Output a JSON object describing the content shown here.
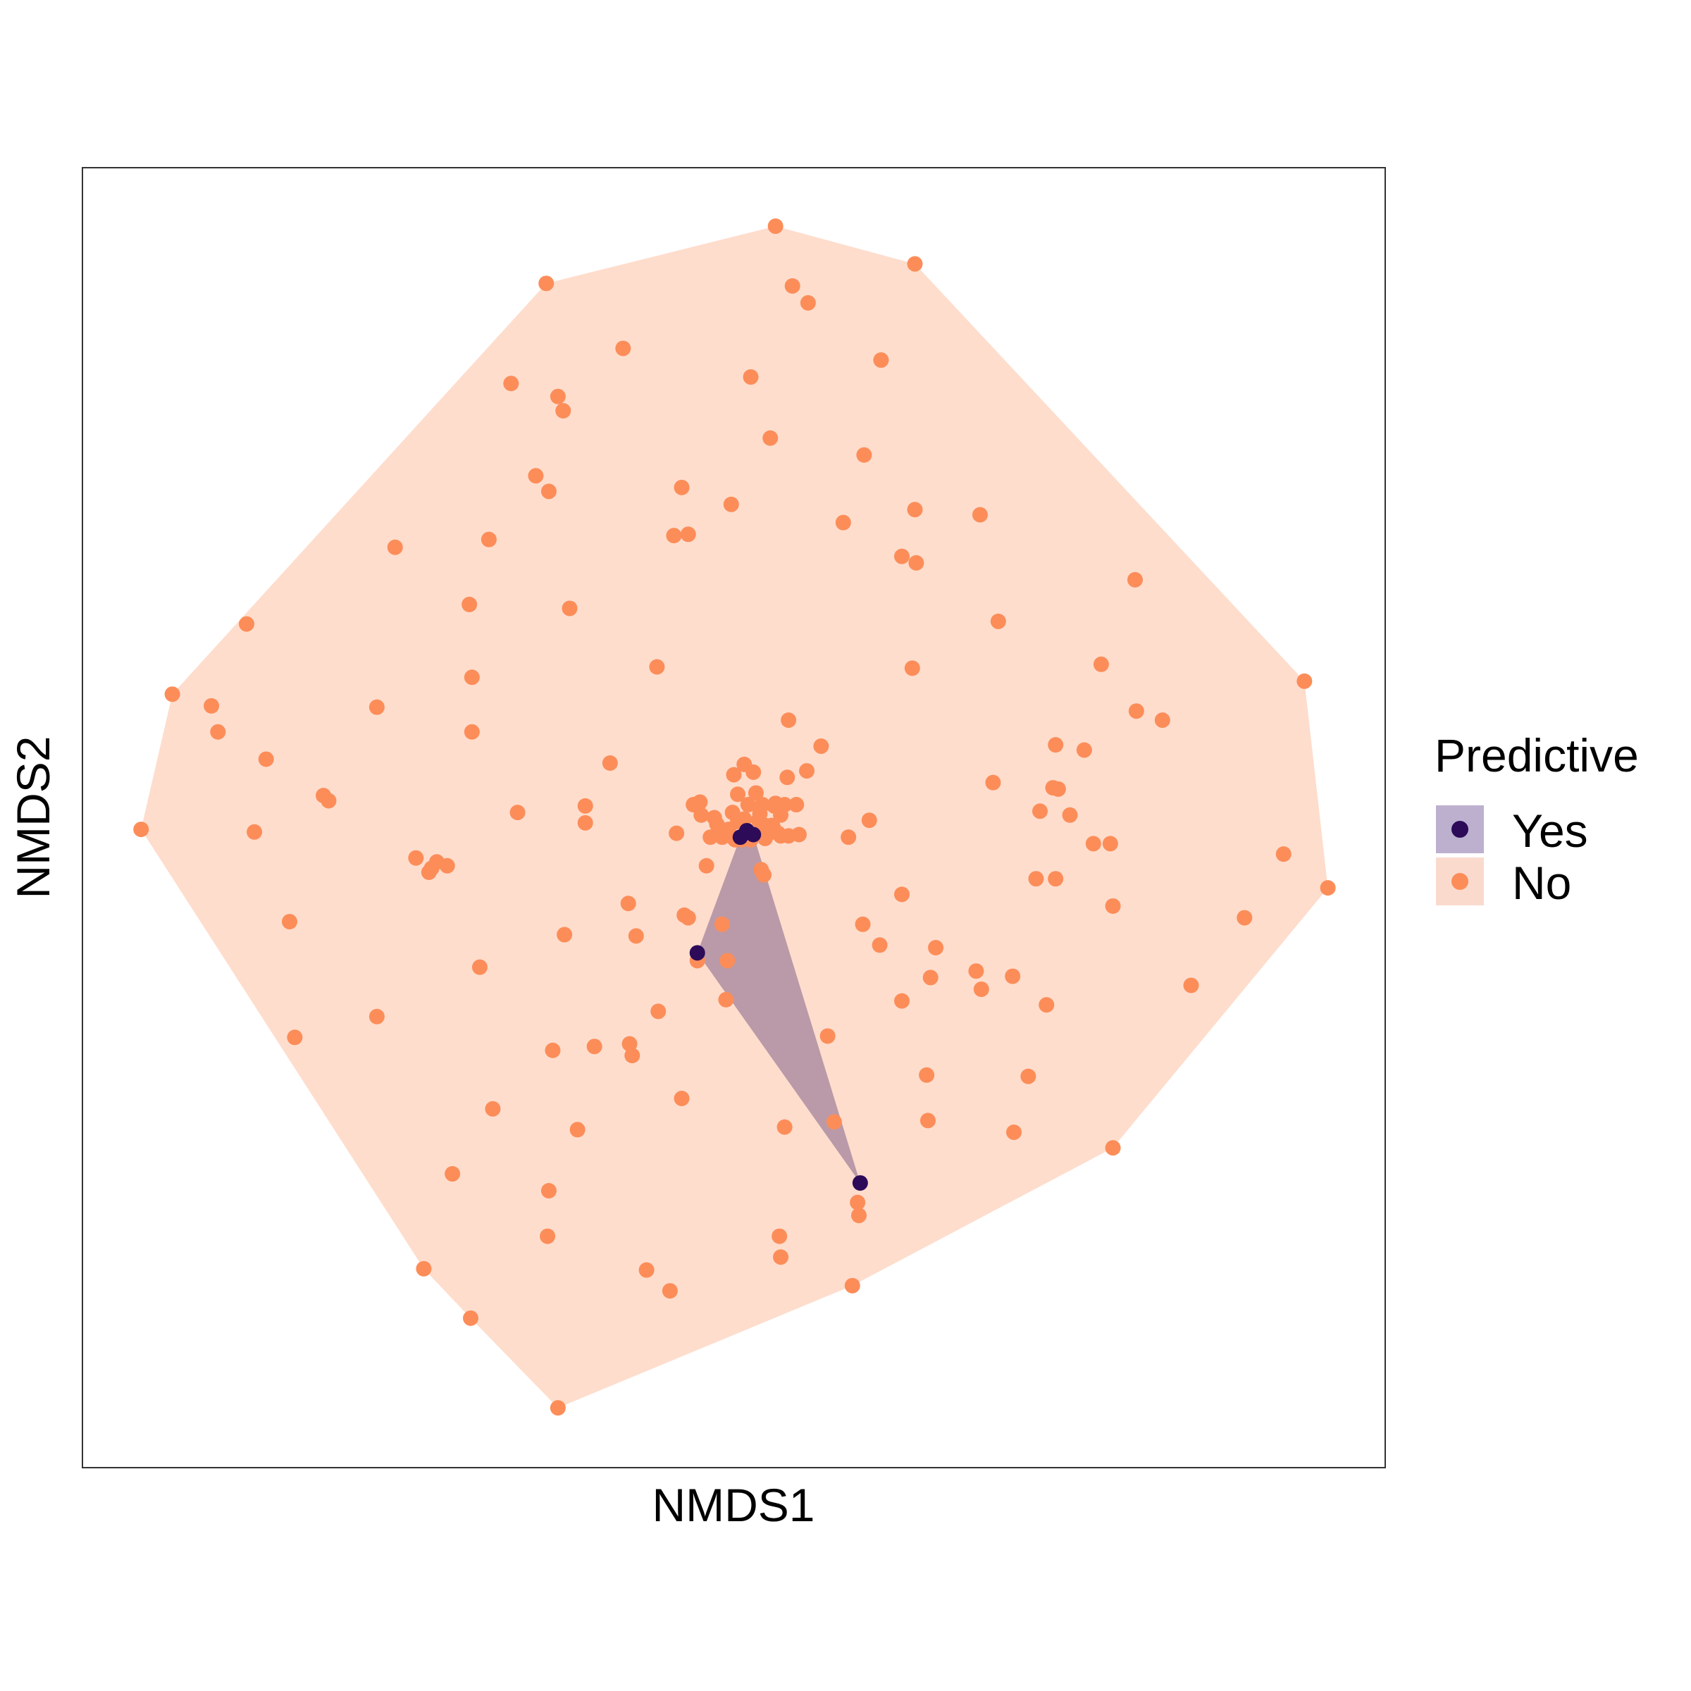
{
  "chart_data": {
    "type": "scatter",
    "title": "",
    "xlabel": "NMDS1",
    "ylabel": "NMDS2",
    "xlim": [
      0,
      100
    ],
    "ylim": [
      0,
      100
    ],
    "x_ticks_shown": false,
    "y_ticks_shown": false,
    "grid": false,
    "hulls": true,
    "legend": {
      "title": "Predictive",
      "placement": "right"
    },
    "series": [
      {
        "name": "Yes",
        "color": "#2D0B59",
        "hull_color": "#BDB0CF",
        "points": [
          [
            47.2,
            39.6
          ],
          [
            59.7,
            21.9
          ],
          [
            50.5,
            48.5
          ],
          [
            51.0,
            49.0
          ],
          [
            51.5,
            48.7
          ]
        ]
      },
      {
        "name": "No",
        "color": "#FC8D59",
        "hull_color": "#FBDACE",
        "points": [
          [
            53.2,
            95.5
          ],
          [
            63.9,
            92.6
          ],
          [
            35.6,
            91.1
          ],
          [
            54.5,
            90.9
          ],
          [
            55.7,
            89.6
          ],
          [
            41.5,
            86.1
          ],
          [
            61.3,
            85.2
          ],
          [
            51.3,
            83.9
          ],
          [
            32.9,
            83.4
          ],
          [
            36.5,
            82.4
          ],
          [
            36.9,
            81.3
          ],
          [
            52.8,
            79.2
          ],
          [
            60.0,
            77.9
          ],
          [
            34.8,
            76.3
          ],
          [
            35.8,
            75.1
          ],
          [
            46.0,
            75.4
          ],
          [
            63.9,
            73.7
          ],
          [
            68.9,
            73.3
          ],
          [
            49.8,
            74.1
          ],
          [
            58.4,
            72.7
          ],
          [
            46.5,
            71.8
          ],
          [
            45.4,
            71.7
          ],
          [
            31.2,
            71.4
          ],
          [
            24.0,
            70.8
          ],
          [
            62.9,
            70.1
          ],
          [
            64.0,
            69.6
          ],
          [
            80.8,
            68.3
          ],
          [
            29.7,
            66.4
          ],
          [
            37.4,
            66.1
          ],
          [
            12.6,
            64.9
          ],
          [
            70.3,
            65.1
          ],
          [
            44.1,
            61.6
          ],
          [
            78.2,
            61.8
          ],
          [
            63.7,
            61.5
          ],
          [
            93.8,
            60.5
          ],
          [
            29.9,
            60.8
          ],
          [
            6.9,
            59.5
          ],
          [
            9.9,
            58.6
          ],
          [
            22.6,
            58.5
          ],
          [
            80.9,
            58.2
          ],
          [
            82.9,
            57.5
          ],
          [
            54.2,
            57.5
          ],
          [
            10.4,
            56.6
          ],
          [
            29.9,
            56.6
          ],
          [
            56.7,
            55.5
          ],
          [
            76.9,
            55.2
          ],
          [
            74.7,
            55.6
          ],
          [
            14.1,
            54.5
          ],
          [
            40.5,
            54.2
          ],
          [
            50.8,
            54.1
          ],
          [
            50.0,
            53.3
          ],
          [
            51.5,
            53.5
          ],
          [
            54.1,
            53.1
          ],
          [
            55.6,
            53.6
          ],
          [
            69.9,
            52.7
          ],
          [
            74.5,
            52.3
          ],
          [
            74.9,
            52.2
          ],
          [
            18.5,
            51.7
          ],
          [
            18.9,
            51.3
          ],
          [
            51.7,
            51.9
          ],
          [
            50.3,
            51.8
          ],
          [
            46.9,
            51.0
          ],
          [
            47.4,
            51.2
          ],
          [
            53.2,
            51.1
          ],
          [
            53.9,
            51.0
          ],
          [
            38.6,
            50.9
          ],
          [
            51.1,
            51.0
          ],
          [
            52.2,
            51.0
          ],
          [
            53.1,
            50.9
          ],
          [
            54.8,
            51.0
          ],
          [
            33.4,
            50.4
          ],
          [
            73.5,
            50.5
          ],
          [
            75.8,
            50.2
          ],
          [
            48.5,
            50.0
          ],
          [
            49.9,
            50.4
          ],
          [
            52.0,
            50.3
          ],
          [
            53.6,
            50.2
          ],
          [
            38.6,
            49.6
          ],
          [
            60.4,
            49.8
          ],
          [
            47.5,
            50.2
          ],
          [
            48.7,
            49.5
          ],
          [
            49.6,
            49.1
          ],
          [
            50.3,
            49.7
          ],
          [
            51.9,
            49.8
          ],
          [
            52.4,
            49.4
          ],
          [
            53.0,
            49.3
          ],
          [
            50.8,
            49.9
          ],
          [
            52.9,
            49.4
          ],
          [
            49.9,
            48.5
          ],
          [
            50.6,
            48.3
          ],
          [
            51.4,
            48.5
          ],
          [
            52.5,
            48.6
          ],
          [
            53.6,
            48.6
          ],
          [
            54.2,
            48.6
          ],
          [
            13.2,
            48.9
          ],
          [
            4.5,
            49.1
          ],
          [
            48.2,
            48.5
          ],
          [
            49.1,
            48.5
          ],
          [
            50.1,
            48.3
          ],
          [
            51.3,
            48.3
          ],
          [
            52.4,
            48.4
          ],
          [
            53.4,
            48.8
          ],
          [
            55.0,
            48.7
          ],
          [
            58.8,
            48.5
          ],
          [
            45.6,
            48.8
          ],
          [
            77.6,
            48.0
          ],
          [
            78.9,
            48.0
          ],
          [
            92.2,
            47.2
          ],
          [
            25.6,
            46.9
          ],
          [
            27.2,
            46.6
          ],
          [
            26.8,
            46.1
          ],
          [
            28.0,
            46.3
          ],
          [
            52.1,
            46.0
          ],
          [
            52.3,
            45.6
          ],
          [
            47.9,
            46.3
          ],
          [
            26.6,
            45.8
          ],
          [
            73.2,
            45.3
          ],
          [
            74.7,
            45.3
          ],
          [
            95.6,
            44.6
          ],
          [
            62.9,
            44.1
          ],
          [
            41.9,
            43.4
          ],
          [
            79.1,
            43.2
          ],
          [
            46.2,
            42.5
          ],
          [
            46.5,
            42.3
          ],
          [
            89.2,
            42.3
          ],
          [
            49.1,
            41.8
          ],
          [
            15.9,
            42.0
          ],
          [
            37.0,
            41.0
          ],
          [
            42.5,
            40.9
          ],
          [
            59.9,
            41.8
          ],
          [
            61.2,
            40.2
          ],
          [
            65.5,
            40.0
          ],
          [
            49.5,
            39.0
          ],
          [
            30.5,
            38.5
          ],
          [
            47.2,
            39.0
          ],
          [
            68.6,
            38.2
          ],
          [
            71.4,
            37.8
          ],
          [
            65.1,
            37.7
          ],
          [
            85.1,
            37.1
          ],
          [
            69.0,
            36.8
          ],
          [
            62.9,
            35.9
          ],
          [
            44.2,
            35.1
          ],
          [
            74.0,
            35.6
          ],
          [
            49.4,
            36.0
          ],
          [
            22.6,
            34.7
          ],
          [
            16.3,
            33.1
          ],
          [
            57.2,
            33.2
          ],
          [
            39.3,
            32.4
          ],
          [
            42.0,
            32.6
          ],
          [
            36.1,
            32.1
          ],
          [
            42.2,
            31.7
          ],
          [
            64.8,
            30.2
          ],
          [
            72.6,
            30.1
          ],
          [
            46.0,
            28.4
          ],
          [
            31.5,
            27.6
          ],
          [
            57.7,
            26.6
          ],
          [
            64.9,
            26.7
          ],
          [
            38.0,
            26.0
          ],
          [
            53.9,
            26.2
          ],
          [
            71.5,
            25.8
          ],
          [
            79.1,
            24.6
          ],
          [
            28.4,
            22.6
          ],
          [
            35.8,
            21.3
          ],
          [
            59.5,
            20.4
          ],
          [
            59.6,
            19.4
          ],
          [
            35.7,
            17.8
          ],
          [
            53.5,
            17.8
          ],
          [
            53.6,
            16.2
          ],
          [
            26.2,
            15.3
          ],
          [
            43.3,
            15.2
          ],
          [
            45.1,
            13.6
          ],
          [
            59.1,
            14.0
          ],
          [
            29.8,
            11.5
          ],
          [
            36.5,
            4.6
          ]
        ]
      }
    ]
  }
}
